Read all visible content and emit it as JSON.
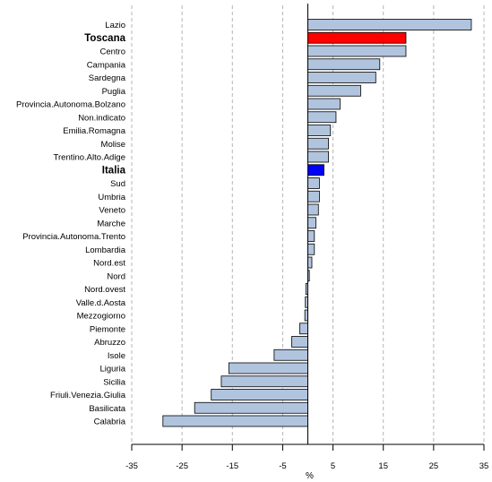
{
  "chart_data": {
    "type": "bar",
    "orientation": "horizontal",
    "categories": [
      "Lazio",
      "Toscana",
      "Centro",
      "Campania",
      "Sardegna",
      "Puglia",
      "Provincia.Autonoma.Bolzano",
      "Non.indicato",
      "Emilia.Romagna",
      "Molise",
      "Trentino.Alto.Adige",
      "Italia",
      "Sud",
      "Umbria",
      "Veneto",
      "Marche",
      "Provincia.Autonoma.Trento",
      "Lombardia",
      "Nord.est",
      "Nord",
      "Nord.ovest",
      "Valle.d.Aosta",
      "Mezzogiorno",
      "Piemonte",
      "Abruzzo",
      "Isole",
      "Liguria",
      "Sicilia",
      "Friuli.Venezia.Giulia",
      "Basilicata",
      "Calabria"
    ],
    "values": [
      32.5,
      19.5,
      19.5,
      14.3,
      13.5,
      10.5,
      6.4,
      5.6,
      4.5,
      4.1,
      4.1,
      3.2,
      2.3,
      2.3,
      2.1,
      1.6,
      1.3,
      1.3,
      0.8,
      0.3,
      -0.4,
      -0.5,
      -0.6,
      -1.6,
      -3.2,
      -6.7,
      -15.7,
      -17.2,
      -19.2,
      -22.5,
      -28.8
    ],
    "highlight": {
      "Toscana": "#ff0000",
      "Italia": "#0000ff"
    },
    "xlabel": "%",
    "ylabel": "",
    "title": "",
    "xlim": [
      -35,
      35
    ],
    "xticks": [
      -35,
      -25,
      -15,
      -5,
      5,
      15,
      25,
      35
    ],
    "grid": "vertical dashed",
    "bar_color": "#b0c4de",
    "bar_border_color": "#000000",
    "label_color_default": "#000000",
    "gridline_color": "#b4b4b4"
  }
}
